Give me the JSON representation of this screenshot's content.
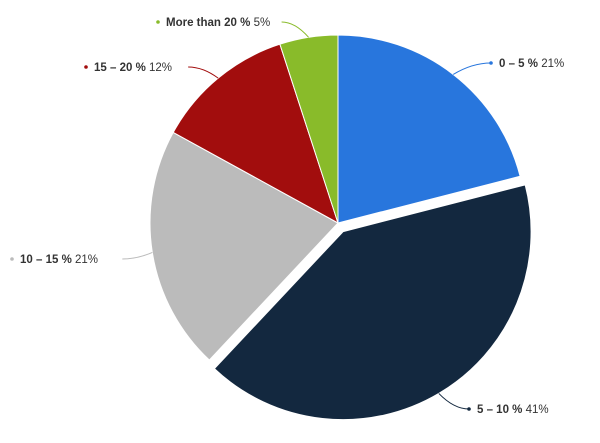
{
  "chart_data": {
    "type": "pie",
    "start_angle_deg": 0,
    "exploded_slice": "5 – 10 %",
    "slices": [
      {
        "label": "0 – 5 %",
        "value": 21,
        "value_label": "21%",
        "color": "#2876dd"
      },
      {
        "label": "5 – 10 %",
        "value": 41,
        "value_label": "41%",
        "color": "#13283f"
      },
      {
        "label": "10 – 15 %",
        "value": 21,
        "value_label": "21%",
        "color": "#bbbbbb"
      },
      {
        "label": "15 – 20 %",
        "value": 12,
        "value_label": "12%",
        "color": "#a20d0d"
      },
      {
        "label": "More than 20 %",
        "value": 5,
        "value_label": "5%",
        "color": "#89bb2a"
      }
    ]
  }
}
